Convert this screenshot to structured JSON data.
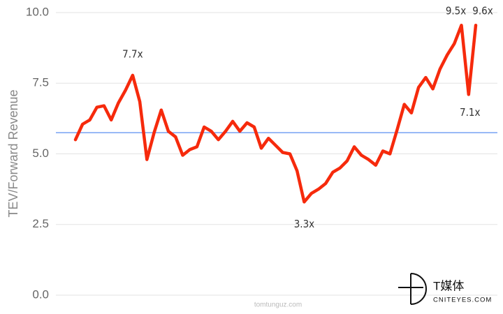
{
  "chart_data": {
    "type": "line",
    "y_label": "TEV/Forward Revenue",
    "categories": [
      null,
      null,
      null,
      null,
      null,
      null,
      null,
      null,
      null,
      null,
      null,
      null,
      null,
      null,
      null,
      null,
      null,
      null,
      null,
      null,
      null,
      null,
      null,
      null,
      null,
      null,
      null,
      null,
      null,
      null,
      null,
      null,
      null,
      null,
      null,
      null,
      null,
      null,
      null,
      null,
      null,
      null,
      null,
      null,
      null,
      null,
      null,
      null,
      null,
      null,
      null,
      null,
      null,
      null,
      null,
      null,
      null
    ],
    "series": [
      {
        "color": "#f62a0c",
        "values": [
          5.5,
          6.05,
          6.2,
          6.65,
          6.7,
          6.2,
          6.8,
          7.25,
          7.78,
          6.85,
          4.8,
          5.75,
          6.55,
          5.8,
          5.6,
          4.95,
          5.15,
          5.25,
          5.95,
          5.8,
          5.5,
          5.8,
          6.15,
          5.8,
          6.1,
          5.95,
          5.2,
          5.55,
          5.3,
          5.05,
          5.0,
          4.4,
          3.3,
          3.6,
          3.75,
          3.95,
          4.35,
          4.5,
          4.75,
          5.25,
          4.95,
          4.8,
          4.6,
          5.1,
          5.0,
          5.85,
          6.75,
          6.45,
          7.35,
          7.7,
          7.3,
          8.0,
          8.5,
          8.9,
          9.55,
          7.1,
          9.55
        ]
      }
    ],
    "reference_line": {
      "value": 5.75,
      "color": "#5b8ff0"
    },
    "annotations": [
      "7.7x",
      "3.3x",
      "9.5x",
      "9.6x",
      "7.1x"
    ],
    "ylim": [
      0,
      10
    ],
    "yticks": [
      {
        "value": 0,
        "label": "0.0"
      },
      {
        "value": 2.5,
        "label": "2.5"
      },
      {
        "value": 5,
        "label": "5.0"
      },
      {
        "value": 7.5,
        "label": "7.5"
      },
      {
        "value": 10,
        "label": "10.0"
      }
    ],
    "grid": true
  },
  "watermark": "tomtunguz.com",
  "logo": {
    "title": "T媒体",
    "subtitle": "CNITEYES.COM"
  }
}
